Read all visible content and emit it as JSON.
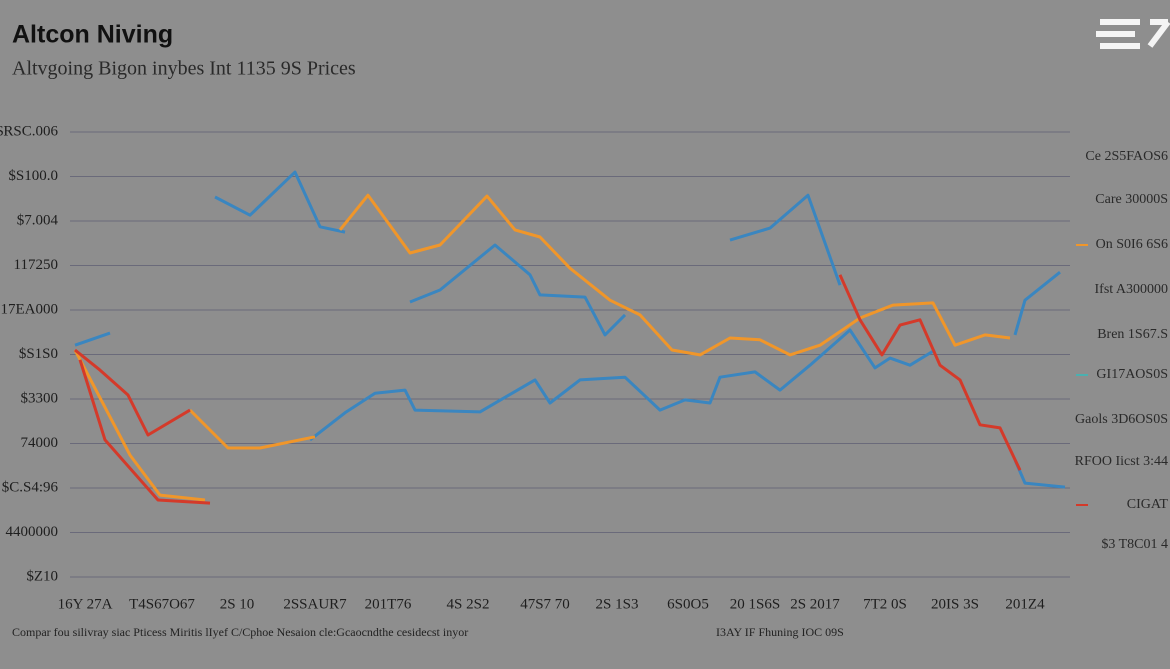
{
  "chart_data": {
    "type": "line",
    "title": "Altcon Niving",
    "subtitle": "Altvgoing Bigon inybes Int 1135 9S Prices",
    "footer_left": "Compar fou silivray siac Pticess Miritis lIyef C/Cphoe Nesaion cle:Gcaocndthe cesidecst inyor",
    "footer_right": "I3AY IF Fhuning IOC 09S",
    "right_labels": [
      "Ce 2S5FAOS6",
      "Care 30000S",
      "On S0I6 6S6",
      "Ifst A300000",
      "Bren 1S67.S",
      "GI17AOS0S",
      "Gaols 3D6OS0S",
      "RFOO Iicst 3:44",
      "CIGAT",
      "$3 T8C01 4"
    ],
    "xlim": [
      0,
      100
    ],
    "xticks": [
      {
        "value": 1.5,
        "label": "16Y 27A"
      },
      {
        "value": 9.2,
        "label": "T4S67O67"
      },
      {
        "value": 16.7,
        "label": "2S 10"
      },
      {
        "value": 24.5,
        "label": "2SSAUR7"
      },
      {
        "value": 31.8,
        "label": "201T76"
      },
      {
        "value": 39.8,
        "label": "4S 2S2"
      },
      {
        "value": 47.5,
        "label": "47S7 70"
      },
      {
        "value": 54.7,
        "label": "2S 1S3"
      },
      {
        "value": 61.8,
        "label": "6S0O5"
      },
      {
        "value": 68.5,
        "label": "20 1S6S"
      },
      {
        "value": 74.5,
        "label": "2S 2017"
      },
      {
        "value": 81.5,
        "label": "7T2 0S"
      },
      {
        "value": 88.5,
        "label": "20IS 3S"
      },
      {
        "value": 95.5,
        "label": "201Z4"
      }
    ],
    "ylim": [
      0,
      10
    ],
    "yticks": [
      {
        "value": 10,
        "label": "$RSC.006"
      },
      {
        "value": 9,
        "label": "$S100.0"
      },
      {
        "value": 8,
        "label": "$7.004"
      },
      {
        "value": 7,
        "label": "117250"
      },
      {
        "value": 6,
        "label": "17EA000"
      },
      {
        "value": 5,
        "label": "$S1S0"
      },
      {
        "value": 4,
        "label": "$3300"
      },
      {
        "value": 3,
        "label": "74000"
      },
      {
        "value": 2,
        "label": "$C.S4:96"
      },
      {
        "value": 1,
        "label": "4400000"
      },
      {
        "value": 0,
        "label": "$Z10"
      }
    ],
    "grid": true,
    "series": [
      {
        "color": "#3a86c0",
        "x": [
          0.5,
          4.0,
          null,
          14.5,
          18.0,
          22.5,
          25.0,
          27.5,
          null,
          34.0,
          37.0,
          42.5,
          46.0,
          47.0,
          51.5,
          53.5,
          55.5,
          null,
          66.0,
          70.0,
          73.8,
          77.0
        ],
        "values": [
          5.21,
          5.48,
          null,
          8.54,
          8.13,
          9.1,
          7.87,
          7.75,
          null,
          6.18,
          6.45,
          7.46,
          6.79,
          6.34,
          6.29,
          5.44,
          5.89,
          null,
          7.57,
          7.84,
          8.58,
          6.56
        ]
      },
      {
        "color": "#3a86c0",
        "x": [
          24.0,
          27.5,
          30.5,
          33.5,
          34.5,
          41.0,
          46.5,
          48.0,
          51.0,
          55.5,
          59.0,
          61.5,
          64.0,
          65.0,
          68.5,
          71.0,
          74.0,
          78.0,
          80.5,
          82.0,
          84.0,
          86.5,
          null,
          94.5,
          95.5,
          99.0,
          null,
          94.5,
          95.5,
          99.5
        ],
        "values": [
          3.08,
          3.69,
          4.13,
          4.2,
          3.75,
          3.71,
          4.43,
          3.91,
          4.43,
          4.49,
          3.75,
          3.98,
          3.91,
          4.49,
          4.61,
          4.2,
          4.76,
          5.55,
          4.7,
          4.92,
          4.76,
          5.1,
          null,
          5.44,
          6.22,
          6.85,
          null,
          2.63,
          2.11,
          2.02
        ]
      },
      {
        "color": "#f0962a",
        "x": [
          27.0,
          29.8,
          34.0,
          37.0,
          41.7,
          44.5,
          47.0,
          50.0,
          54.0,
          57.0,
          60.2,
          63.0,
          66.0,
          69.0,
          72.0,
          75.0,
          79.0,
          82.3,
          86.3,
          88.5,
          91.5,
          94.0,
          null,
          0.5,
          6.0,
          9.0,
          13.5,
          null,
          12.0,
          15.8,
          19.0,
          24.5
        ],
        "values": [
          7.8,
          8.58,
          7.28,
          7.46,
          8.56,
          7.8,
          7.64,
          6.94,
          6.22,
          5.89,
          5.1,
          4.99,
          5.37,
          5.33,
          4.99,
          5.21,
          5.82,
          6.11,
          6.16,
          5.21,
          5.44,
          5.37,
          null,
          5.1,
          2.74,
          1.84,
          1.73,
          null,
          3.75,
          2.9,
          2.9,
          3.15
        ]
      },
      {
        "color": "#d43a2a",
        "x": [
          0.5,
          3.0,
          5.8,
          7.8,
          12.0,
          null,
          1.0,
          3.5,
          8.8,
          14.0,
          null,
          77.0,
          79.0,
          81.2,
          83.0,
          85.0,
          87.0,
          89.0,
          91.0,
          93.0,
          95.0
        ],
        "values": [
          5.1,
          4.65,
          4.09,
          3.19,
          3.75,
          null,
          4.88,
          3.08,
          1.73,
          1.66,
          null,
          6.79,
          5.78,
          4.99,
          5.66,
          5.78,
          4.76,
          4.43,
          3.42,
          3.35,
          2.4
        ]
      }
    ]
  }
}
